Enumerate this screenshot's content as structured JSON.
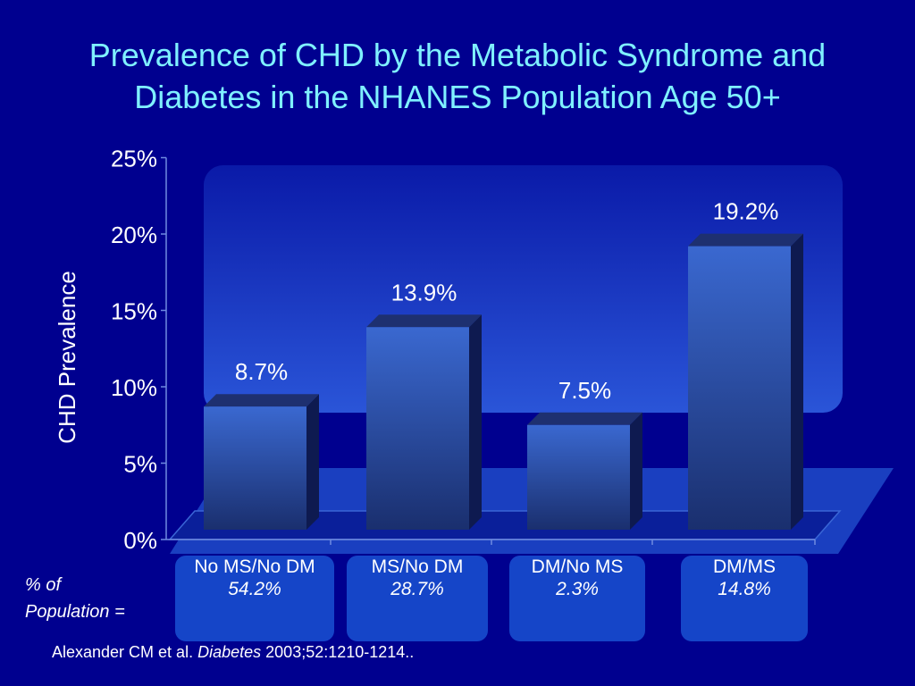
{
  "title_line1": "Prevalence of CHD by the Metabolic Syndrome and",
  "title_line2": "Diabetes in the NHANES Population Age 50+",
  "colors": {
    "background": "#00008f",
    "title": "#7ff0ff",
    "bar_front": "#3a68d0",
    "bar_dark": "#14286a",
    "panel": "#1a3fc0"
  },
  "chart_data": {
    "type": "bar",
    "ylabel": "CHD Prevalence",
    "ylim": [
      0,
      25
    ],
    "yticks": [
      "0%",
      "5%",
      "10%",
      "15%",
      "20%",
      "25%"
    ],
    "categories": [
      "No MS/No DM",
      "MS/No DM",
      "DM/No MS",
      "DM/MS"
    ],
    "values": [
      8.7,
      13.9,
      7.5,
      19.2
    ],
    "value_labels": [
      "8.7%",
      "13.9%",
      "7.5%",
      "19.2%"
    ]
  },
  "population": {
    "label_line1": "% of",
    "label_line2": "Population =",
    "values": [
      "54.2%",
      "28.7%",
      "2.3%",
      "14.8%"
    ]
  },
  "source": {
    "authors": "Alexander CM et al.",
    "journal": "Diabetes",
    "citation": "2003;52:1210-1214.."
  }
}
